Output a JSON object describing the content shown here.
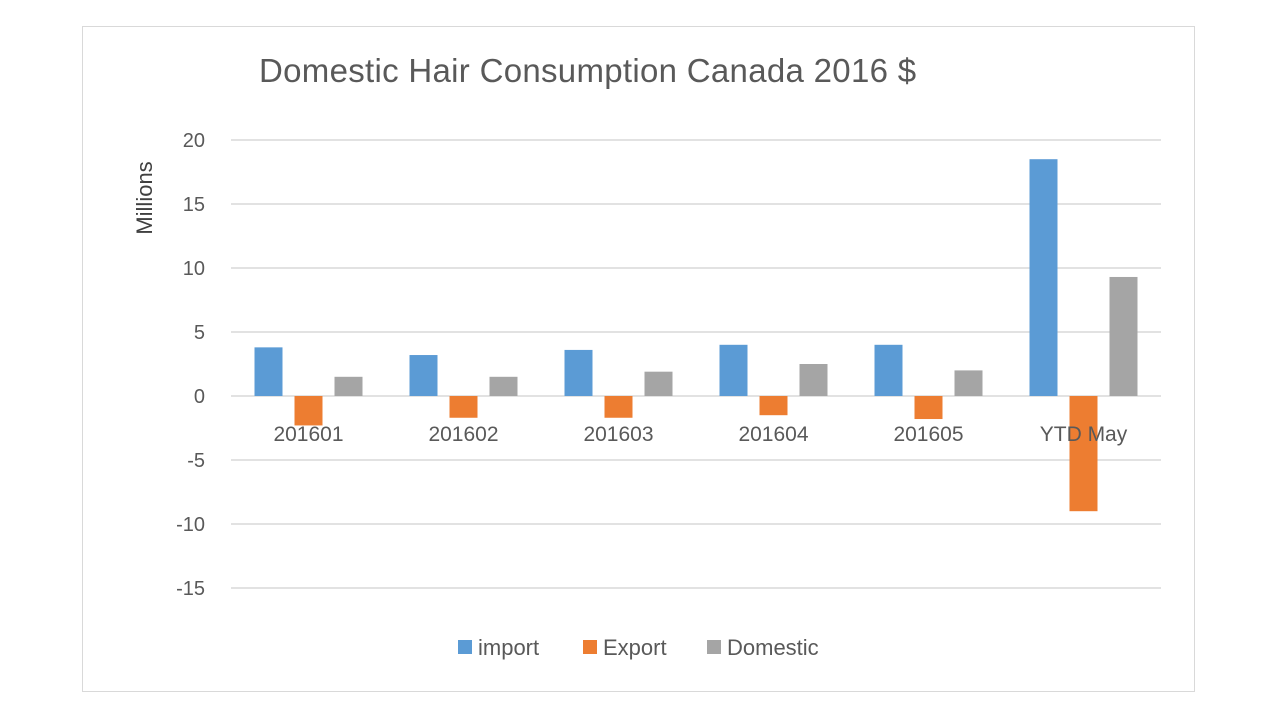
{
  "chart_data": {
    "type": "bar",
    "title": "Domestic Hair Consumption Canada 2016 $",
    "xlabel": "",
    "ylabel": "Millions",
    "categories": [
      "201601",
      "201602",
      "201603",
      "201604",
      "201605",
      "YTD May"
    ],
    "ylim": [
      -15,
      20
    ],
    "yticks": [
      "20",
      "15",
      "10",
      "5",
      "0",
      "-5",
      "-10",
      "-15"
    ],
    "grid": true,
    "legend_position": "bottom",
    "series": [
      {
        "name": "import",
        "color": "#5b9bd5",
        "values": [
          3.8,
          3.2,
          3.6,
          4.0,
          4.0,
          18.5
        ]
      },
      {
        "name": "Export",
        "color": "#ed7d31",
        "values": [
          -2.3,
          -1.7,
          -1.7,
          -1.5,
          -1.8,
          -9.0
        ]
      },
      {
        "name": "Domestic",
        "color": "#a5a5a5",
        "values": [
          1.5,
          1.5,
          1.9,
          2.5,
          2.0,
          9.3
        ]
      }
    ]
  }
}
